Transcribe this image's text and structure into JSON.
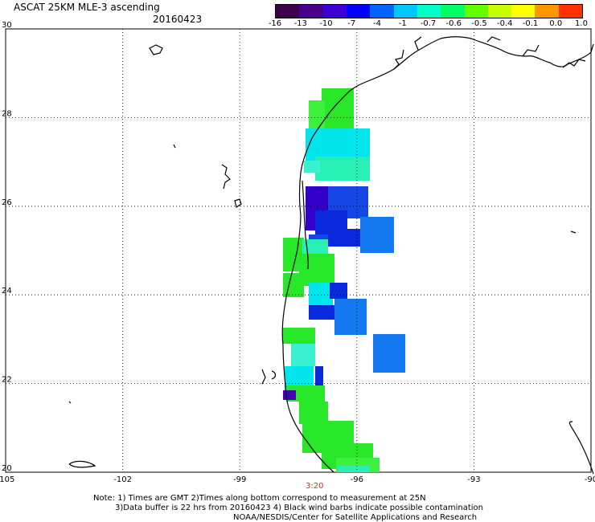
{
  "header": {
    "title": "ASCAT 25KM MLE-3 ascending",
    "date": "20160423"
  },
  "colorbar": {
    "labels": [
      "-16",
      "-13",
      "-10",
      "-7",
      "-4",
      "-1",
      "-0.7",
      "-0.6",
      "-0.5",
      "-0.4",
      "-0.1",
      "0.0",
      "1.0"
    ],
    "colors": [
      "#3a0048",
      "#48008c",
      "#3c00d2",
      "#0000ff",
      "#0064ff",
      "#00c8ff",
      "#00ffc8",
      "#00ff64",
      "#64ff00",
      "#c8ff00",
      "#ffff00",
      "#ff9600",
      "#ff3200"
    ]
  },
  "map": {
    "lon_labels": [
      "-105",
      "-102",
      "-99",
      "-96",
      "-93",
      "-90"
    ],
    "lat_labels": [
      "30",
      "28",
      "26",
      "24",
      "22",
      "20"
    ],
    "lon_range": [
      -105,
      -90
    ],
    "lat_range": [
      20,
      30
    ],
    "grid": "dotted",
    "time_label": "3:20",
    "time_color": "#c0301c",
    "data_colors": {
      "green": "#28e628",
      "lightgreen": "#3cf03c",
      "aqua": "#28f0b4",
      "cyan": "#00e6ec",
      "lightcyan": "#3cf0d2",
      "blue": "#1478f0",
      "deepblue": "#1446e6",
      "royal": "#0a28dc",
      "indigo": "#3200c8",
      "violet": "#4600b4"
    }
  },
  "notes": {
    "line1": "Note: 1) Times are GMT 2)Times along bottom correspond to measurement at 25N",
    "line2": "3)Data buffer is 22 hrs from 20160423 4) Black wind barbs indicate possible contamination",
    "line3": "NOAA/NESDIS/Center for Satellite Applications and Research"
  }
}
